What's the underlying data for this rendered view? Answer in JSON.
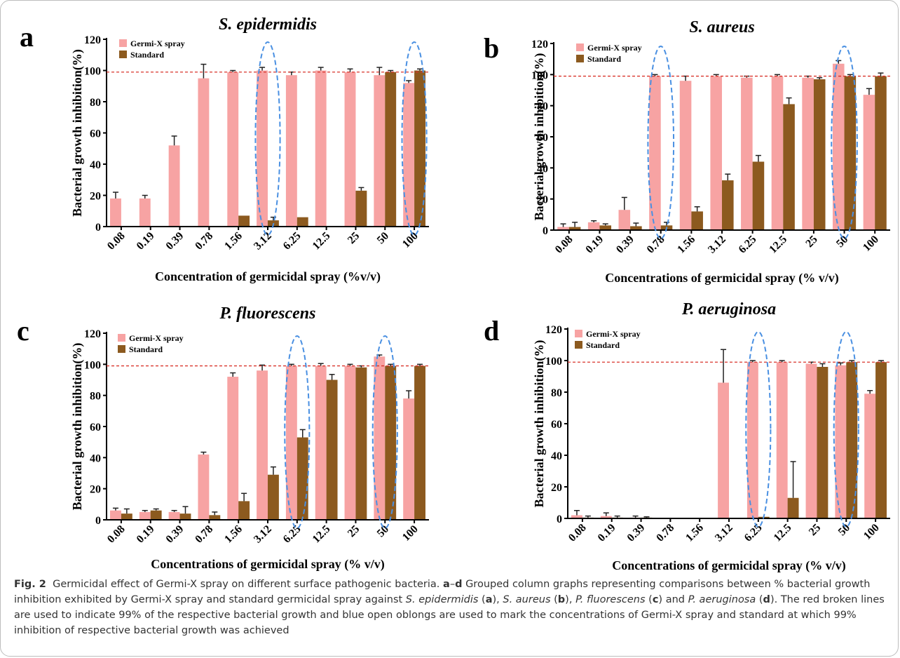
{
  "colors": {
    "germi": "#f7a3a3",
    "standard": "#8c5a1f",
    "threshold": "#d9342b",
    "oblong": "#4a90e2",
    "axis": "#000000"
  },
  "chart_data": [
    {
      "panel": "a",
      "type": "bar",
      "title": "S. epidermidis",
      "xlabel": "Concentration of germicidal spray  (%v/v)",
      "ylabel": "Bacterial growth  inhibition(%)",
      "ylim": [
        0,
        120
      ],
      "yticks": [
        "0",
        "20",
        "40",
        "60",
        "80",
        "100",
        "120"
      ],
      "threshold": 99,
      "categories": [
        "0.08",
        "0.19",
        "0.39",
        "0.78",
        "1.56",
        "3.12",
        "6.25",
        "12.5",
        "25",
        "50",
        "100"
      ],
      "series": [
        {
          "name": "Germi-X spray",
          "values": [
            18,
            18,
            52,
            95,
            99,
            100,
            97,
            100,
            99,
            97,
            92
          ],
          "errors": [
            4,
            2,
            6,
            9,
            1,
            2,
            2,
            2,
            2,
            5,
            1.5
          ]
        },
        {
          "name": "Standard",
          "values": [
            0,
            0,
            0,
            0,
            7,
            4,
            6,
            0,
            23,
            99,
            100
          ],
          "errors": [
            0,
            0,
            0,
            0,
            0,
            2,
            0,
            0,
            2,
            1,
            1
          ]
        }
      ],
      "highlight": [
        "3.12",
        "100"
      ]
    },
    {
      "panel": "b",
      "type": "bar",
      "title": "S. aureus",
      "xlabel": "Concentrations of germicidal spray (% v/v)",
      "ylabel": "Bacterial growth  inhibition(%)",
      "ylim": [
        0,
        120
      ],
      "yticks": [
        "0",
        "20",
        "40",
        "60",
        "80",
        "100",
        "120"
      ],
      "threshold": 99,
      "categories": [
        "0.08",
        "0.19",
        "0.39",
        "0.78",
        "1.56",
        "3.12",
        "6.25",
        "12.5",
        "25",
        "50",
        "100"
      ],
      "series": [
        {
          "name": "Germi-X spray",
          "values": [
            2,
            5,
            13,
            99,
            96,
            99,
            98,
            99,
            98,
            107,
            87
          ],
          "errors": [
            2,
            1,
            8,
            1,
            3,
            1,
            1,
            1,
            1,
            2,
            4
          ]
        },
        {
          "name": "Standard",
          "values": [
            2,
            3,
            2.5,
            3,
            12,
            32,
            44,
            81,
            97,
            99,
            99
          ],
          "errors": [
            3,
            1,
            2,
            2,
            3,
            4,
            4,
            4,
            1,
            1,
            2
          ]
        }
      ],
      "highlight": [
        "0.78",
        "50"
      ]
    },
    {
      "panel": "c",
      "type": "bar",
      "title": "P. fluorescens",
      "xlabel": "Concentrations of germicidal spray (% v/v)",
      "ylabel": "Bacterial growth  inhibition(%)",
      "ylim": [
        0,
        120
      ],
      "yticks": [
        "0",
        "20",
        "40",
        "60",
        "80",
        "100",
        "120"
      ],
      "threshold": 99,
      "categories": [
        "0.08",
        "0.19",
        "0.39",
        "0.78",
        "1.56",
        "3.12",
        "6.25",
        "12.5",
        "25",
        "50",
        "100"
      ],
      "series": [
        {
          "name": "Germi-X spray",
          "values": [
            6,
            5,
            5,
            42,
            92,
            96,
            99,
            99,
            99,
            105,
            78
          ],
          "errors": [
            1.5,
            1,
            1,
            1.5,
            2.5,
            3.5,
            1,
            1.5,
            1,
            1,
            5
          ]
        },
        {
          "name": "Standard",
          "values": [
            4,
            6,
            4,
            3,
            12,
            29,
            53,
            90,
            98,
            99,
            99
          ],
          "errors": [
            3,
            1,
            4.5,
            2,
            5,
            5,
            5,
            3.5,
            1,
            1,
            1
          ]
        }
      ],
      "highlight": [
        "6.25",
        "50"
      ]
    },
    {
      "panel": "d",
      "type": "bar",
      "title": "P. aeruginosa",
      "xlabel": "Concentrations of germicidal spray  (% v/v)",
      "ylabel": "Bacterial growth  inhibition(%)",
      "ylim": [
        0,
        120
      ],
      "yticks": [
        "0",
        "20",
        "40",
        "60",
        "80",
        "100",
        "120"
      ],
      "threshold": 99,
      "categories": [
        "0.08",
        "0.19",
        "0.39",
        "0.78",
        "1.56",
        "3.12",
        "6.25",
        "12.5",
        "25",
        "50",
        "100"
      ],
      "series": [
        {
          "name": "Germi-X spray",
          "values": [
            2,
            1.5,
            0.5,
            0,
            0,
            86,
            99,
            99,
            98,
            97,
            79
          ],
          "errors": [
            3,
            2,
            1,
            0,
            0,
            21,
            1,
            1,
            1,
            1.5,
            2
          ]
        },
        {
          "name": "Standard",
          "values": [
            0.5,
            0.5,
            0.5,
            0,
            0,
            0,
            1,
            13,
            96,
            99,
            99
          ],
          "errors": [
            1,
            1,
            0.5,
            0,
            0,
            0,
            0,
            23,
            2,
            1,
            1
          ]
        }
      ],
      "highlight": [
        "6.25",
        "50"
      ]
    }
  ],
  "caption": {
    "fig": "Fig. 2",
    "title": "Germicidal effect of Germi-X spray on different surface pathogenic bacteria.",
    "a": "a",
    "dash": "–",
    "d": "d",
    "text1": "Grouped column graphs representing comparisons between % bacterial growth inhibition exhibited by Germi-X spray and standard germicidal spray against",
    "sp1": "S. epidermidis",
    "sp2": "S. aureus",
    "sp3": "P. fluorescens",
    "sp4": "P. aeruginosa",
    "b": "b",
    "c": "c",
    "and": "and",
    "text2": ". The red broken lines are used to indicate 99% of the respective bacterial growth and blue open oblongs are used to mark the concentrations of Germi-X spray and standard at which 99% inhibition of respective bacterial growth was achieved"
  }
}
